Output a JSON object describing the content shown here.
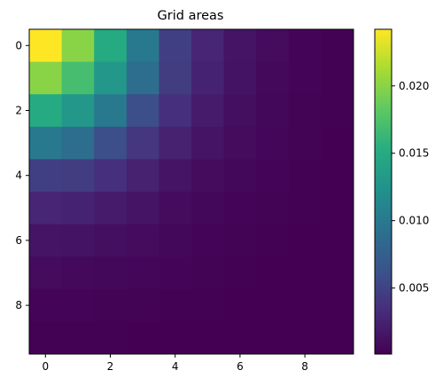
{
  "chart_data": {
    "type": "heatmap",
    "title": "Grid areas",
    "xlabel": "",
    "ylabel": "",
    "rows": 10,
    "cols": 10,
    "x_ticks": [
      0,
      2,
      4,
      6,
      8
    ],
    "y_ticks": [
      0,
      2,
      4,
      6,
      8
    ],
    "y_axis_inverted": true,
    "colormap": "viridis",
    "colorbar": {
      "min": 0.0001,
      "max": 0.0242,
      "ticks": [
        0.005,
        0.01,
        0.015,
        0.02
      ],
      "tick_labels": [
        "0.005",
        "0.010",
        "0.015",
        "0.020"
      ],
      "placement": "right"
    },
    "grid": false,
    "values": [
      [
        0.0242,
        0.02,
        0.015,
        0.01,
        0.0047,
        0.0028,
        0.0015,
        0.0008,
        0.0004,
        0.0002
      ],
      [
        0.02,
        0.017,
        0.013,
        0.009,
        0.0045,
        0.0026,
        0.0014,
        0.0007,
        0.0004,
        0.0002
      ],
      [
        0.015,
        0.013,
        0.01,
        0.006,
        0.0035,
        0.002,
        0.0011,
        0.0006,
        0.0003,
        0.0002
      ],
      [
        0.01,
        0.009,
        0.006,
        0.004,
        0.0025,
        0.0015,
        0.0009,
        0.0005,
        0.0003,
        0.0001
      ],
      [
        0.0047,
        0.0045,
        0.0035,
        0.0025,
        0.0015,
        0.0009,
        0.0006,
        0.0004,
        0.0002,
        0.0001
      ],
      [
        0.0028,
        0.0026,
        0.002,
        0.0015,
        0.0009,
        0.0006,
        0.0004,
        0.0003,
        0.0002,
        0.0001
      ],
      [
        0.0015,
        0.0014,
        0.0011,
        0.0009,
        0.0006,
        0.0004,
        0.0003,
        0.0002,
        0.0001,
        0.0001
      ],
      [
        0.0008,
        0.0007,
        0.0006,
        0.0005,
        0.0004,
        0.0003,
        0.0002,
        0.0001,
        0.0001,
        0.0001
      ],
      [
        0.0004,
        0.0004,
        0.0003,
        0.0003,
        0.0002,
        0.0002,
        0.0001,
        0.0001,
        0.0001,
        0.0001
      ],
      [
        0.0002,
        0.0002,
        0.0002,
        0.0001,
        0.0001,
        0.0001,
        0.0001,
        0.0001,
        0.0001,
        0.0001
      ]
    ]
  }
}
